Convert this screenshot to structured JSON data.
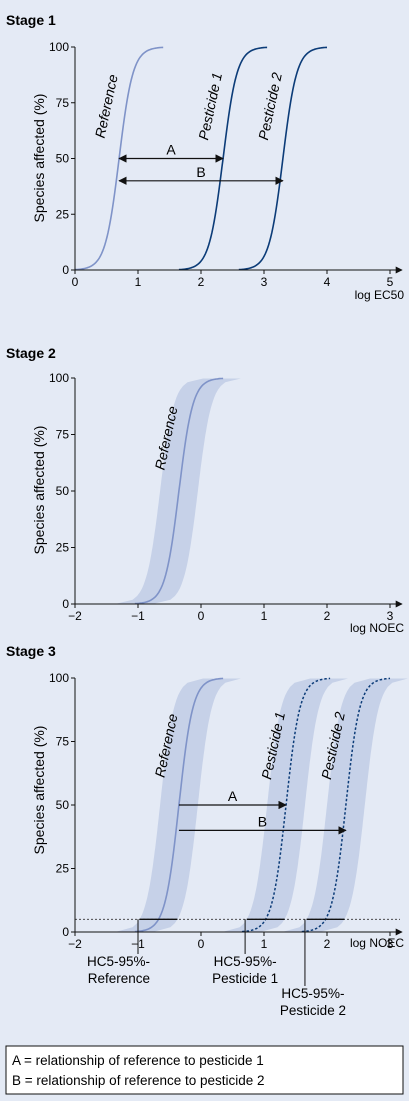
{
  "colors": {
    "background": "#e4eaf5",
    "reference_curve": "#7f93c8",
    "pesticide_curve": "#0c3c78",
    "band_fill": "#c6d1e8",
    "axis": "#111111"
  },
  "chart_data": [
    {
      "type": "line",
      "title": "Stage 1",
      "ylabel": "Species affected (%)",
      "xlabel": "log EC50",
      "xlim": [
        0,
        5
      ],
      "ylim": [
        0,
        100
      ],
      "x_ticks": [
        "0",
        "1",
        "2",
        "3",
        "4",
        "5"
      ],
      "y_ticks": [
        "0",
        "25",
        "50",
        "75",
        "100"
      ],
      "grid": false,
      "series": [
        {
          "name": "Reference",
          "center_log": 0.7,
          "color": "#7f93c8",
          "x": [
            0.0,
            0.2,
            0.4,
            0.55,
            0.7,
            0.85,
            1.0,
            1.2,
            1.4
          ],
          "y": [
            0.4,
            3,
            13,
            29,
            50,
            71,
            87,
            97,
            100
          ]
        },
        {
          "name": "Pesticide 1",
          "center_log": 2.35,
          "color": "#0c3c78",
          "x": [
            1.65,
            1.85,
            2.05,
            2.2,
            2.35,
            2.5,
            2.65,
            2.85,
            3.05
          ],
          "y": [
            0.4,
            3,
            13,
            29,
            50,
            71,
            87,
            97,
            100
          ]
        },
        {
          "name": "Pesticide 2",
          "center_log": 3.3,
          "color": "#0c3c78",
          "x": [
            2.6,
            2.8,
            3.0,
            3.15,
            3.3,
            3.45,
            3.6,
            3.8,
            4.0
          ],
          "y": [
            0.4,
            3,
            13,
            29,
            50,
            71,
            87,
            97,
            100
          ]
        }
      ],
      "annotations": [
        {
          "label": "A",
          "from_x": 0.7,
          "to_x": 2.35,
          "y": 50
        },
        {
          "label": "B",
          "from_x": 0.7,
          "to_x": 3.3,
          "y": 40
        }
      ]
    },
    {
      "type": "line",
      "title": "Stage 2",
      "ylabel": "Species affected (%)",
      "xlabel": "log NOEC",
      "xlim": [
        -2,
        3
      ],
      "ylim": [
        0,
        100
      ],
      "x_ticks": [
        "−2",
        "−1",
        "0",
        "1",
        "2",
        "3"
      ],
      "y_ticks": [
        "0",
        "25",
        "50",
        "75",
        "100"
      ],
      "grid": false,
      "series": [
        {
          "name": "Reference",
          "center_log": -0.35,
          "band_halfwidth": 0.3,
          "color": "#7f93c8",
          "x": [
            -1.05,
            -0.85,
            -0.65,
            -0.5,
            -0.35,
            -0.2,
            -0.05,
            0.15,
            0.35
          ],
          "y": [
            0.4,
            3,
            13,
            29,
            50,
            71,
            87,
            97,
            100
          ]
        }
      ]
    },
    {
      "type": "line",
      "title": "Stage 3",
      "ylabel": "Species affected (%)",
      "xlabel": "log NOEC",
      "xlim": [
        -2,
        3
      ],
      "ylim": [
        0,
        100
      ],
      "x_ticks": [
        "−2",
        "−1",
        "0",
        "1",
        "2",
        "3"
      ],
      "y_ticks": [
        "0",
        "25",
        "50",
        "75",
        "100"
      ],
      "grid": false,
      "hc_level": 5,
      "series": [
        {
          "name": "Reference",
          "center_log": -0.35,
          "band_halfwidth": 0.3,
          "color": "#7f93c8",
          "dashed": false,
          "x": [
            -1.05,
            -0.85,
            -0.65,
            -0.5,
            -0.35,
            -0.2,
            -0.05,
            0.15,
            0.35
          ],
          "y": [
            0.4,
            3,
            13,
            29,
            50,
            71,
            87,
            97,
            100
          ]
        },
        {
          "name": "Pesticide 1",
          "center_log": 1.35,
          "band_halfwidth": 0.3,
          "color": "#0c3c78",
          "dashed": true,
          "x": [
            0.65,
            0.85,
            1.05,
            1.2,
            1.35,
            1.5,
            1.65,
            1.85,
            2.05
          ],
          "y": [
            0.4,
            3,
            13,
            29,
            50,
            71,
            87,
            97,
            100
          ]
        },
        {
          "name": "Pesticide 2",
          "center_log": 2.3,
          "band_halfwidth": 0.3,
          "color": "#0c3c78",
          "dashed": true,
          "x": [
            1.6,
            1.8,
            2.0,
            2.15,
            2.3,
            2.45,
            2.6,
            2.8,
            3.0
          ],
          "y": [
            0.4,
            3,
            13,
            29,
            50,
            71,
            87,
            97,
            100
          ]
        }
      ],
      "annotations": [
        {
          "label": "A",
          "from_x": -0.35,
          "to_x": 1.35,
          "y": 50
        },
        {
          "label": "B",
          "from_x": -0.35,
          "to_x": 2.3,
          "y": 40
        }
      ],
      "hc5_markers": [
        {
          "label_lines": [
            "HC5-95%-",
            "Reference"
          ],
          "x": -1.0
        },
        {
          "label_lines": [
            "HC5-95%-",
            "Pesticide 1"
          ],
          "x": 0.7
        },
        {
          "label_lines": [
            "HC5-95%-",
            "Pesticide 2"
          ],
          "x": 1.65
        }
      ]
    }
  ],
  "legend": {
    "line_a": "A = relationship of reference to pesticide 1",
    "line_b": "B = relationship of reference to pesticide 2"
  }
}
